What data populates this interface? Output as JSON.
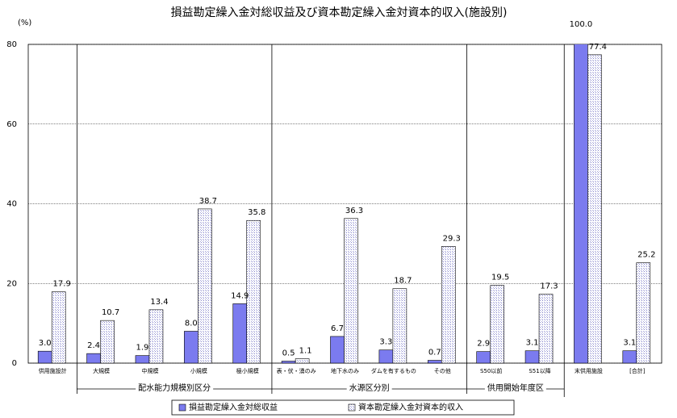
{
  "chart_data": {
    "type": "bar",
    "title": "損益勘定繰入金対総収益及び資本勘定繰入金対資本的収入(施設別)",
    "y_unit": "(%)",
    "categories": [
      "供用施設計",
      "大規模",
      "中規模",
      "小規模",
      "極小規模",
      "表・伏・湧のみ",
      "地下水のみ",
      "ダムを有するもの",
      "その他",
      "S50以前",
      "S51以降",
      "末供用施設",
      "[合計]"
    ],
    "groups": [
      "配水能力規模別区分",
      "水源区分別",
      "供用開始年度区"
    ],
    "series": [
      {
        "name": "損益勘定繰入金対総収益",
        "color": "#7b7bef",
        "values": [
          3.0,
          2.4,
          1.9,
          8.0,
          14.9,
          0.5,
          6.7,
          3.3,
          0.7,
          2.9,
          3.1,
          100.0,
          3.1
        ],
        "value_labels": [
          "3.0",
          "2.4",
          "1.9",
          "8.0",
          "14.9",
          "0.5",
          "6.7",
          "3.3",
          "0.7",
          "2.9",
          "3.1",
          "100.0",
          "3.1"
        ]
      },
      {
        "name": "資本勘定繰入金対資本的収入",
        "color": "#dcdcf4",
        "values": [
          17.9,
          10.7,
          13.4,
          38.7,
          35.8,
          1.1,
          36.3,
          18.7,
          29.3,
          19.5,
          17.3,
          77.4,
          25.2
        ],
        "value_labels": [
          "17.9",
          "10.7",
          "13.4",
          "38.7",
          "35.8",
          "1.1",
          "36.3",
          "18.7",
          "29.3",
          "19.5",
          "17.3",
          "77.4",
          "25.2"
        ]
      }
    ],
    "ylim": [
      0,
      80
    ],
    "yticks": [
      0,
      20,
      40,
      60,
      80
    ],
    "grid": true
  }
}
